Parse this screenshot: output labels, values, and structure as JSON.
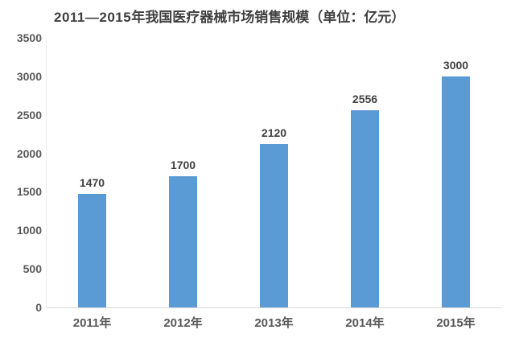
{
  "title_parts": {
    "prefix": "2011—2015",
    "rest": "年我国医疗器械市场销售规模（单位：亿元）"
  },
  "chart_data": {
    "type": "bar",
    "title": "2011—2015年我国医疗器械市场销售规模（单位：亿元）",
    "categories": [
      "2011年",
      "2012年",
      "2013年",
      "2014年",
      "2015年"
    ],
    "values": [
      1470,
      1700,
      2120,
      2556,
      3000
    ],
    "unit": "亿元",
    "xlabel": "",
    "ylabel": "",
    "ylim": [
      0,
      3500
    ],
    "yticks": [
      0,
      500,
      1000,
      1500,
      2000,
      2500,
      3000,
      3500
    ],
    "grid": false,
    "legend": false,
    "data_labels": true
  },
  "colors": {
    "bar": "#5B9BD5",
    "value_label": "#404040",
    "tick_label": "#595959",
    "axis_line": "#d9d9d9",
    "y_axis_line": "#ececec",
    "title": "#3f3f3f",
    "background": "#ffffff"
  }
}
